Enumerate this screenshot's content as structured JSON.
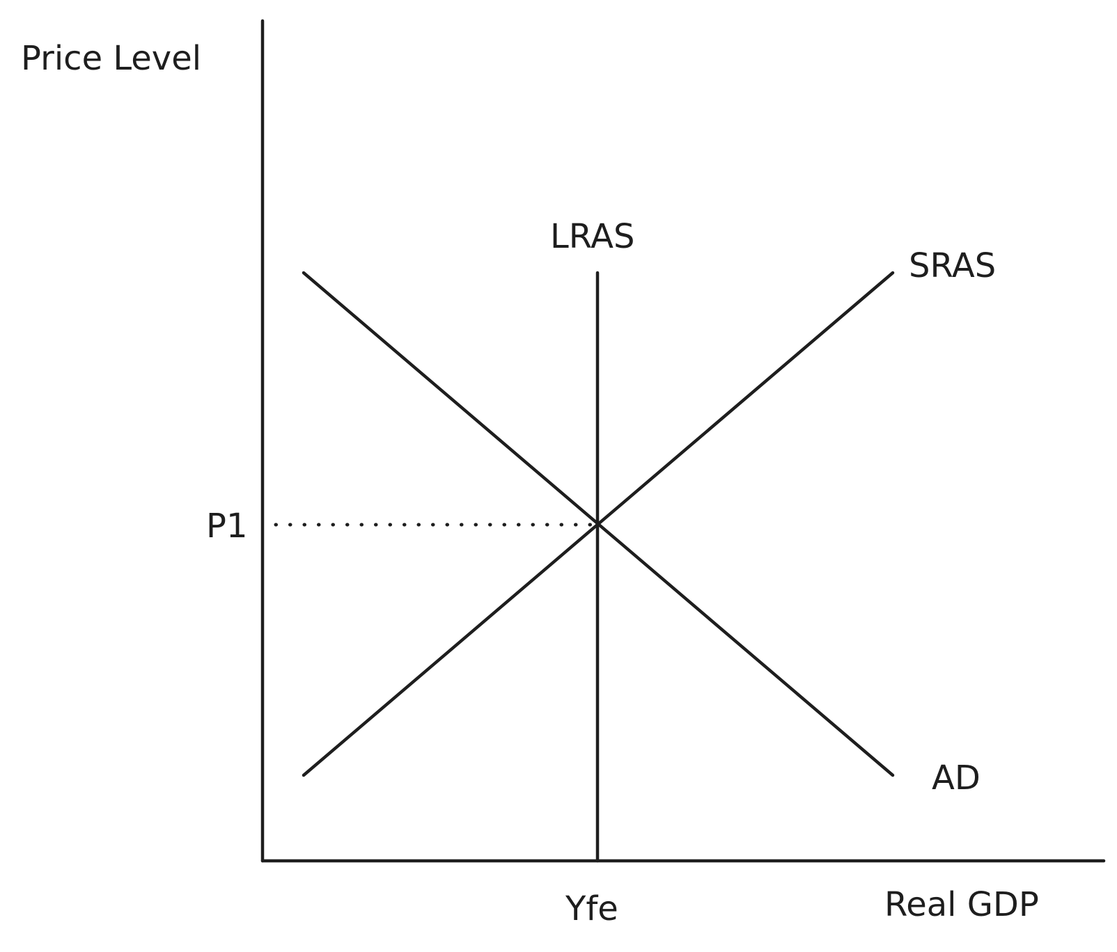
{
  "axes": {
    "y_label": "Price Level",
    "x_label": "Real GDP"
  },
  "curves": {
    "lras_label": "LRAS",
    "sras_label": "SRAS",
    "ad_label": "AD"
  },
  "equilibrium": {
    "price_label": "P1",
    "output_label": "Yfe"
  }
}
